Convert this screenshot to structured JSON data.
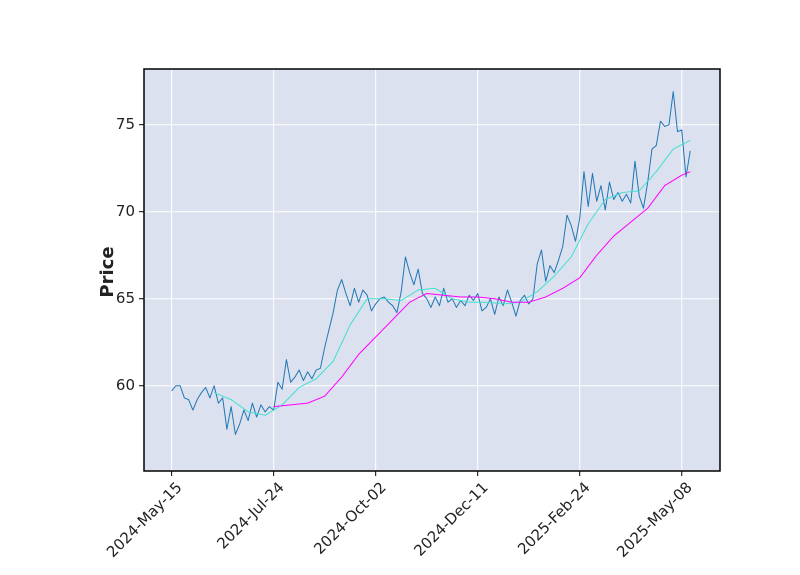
{
  "chart_data": {
    "type": "line",
    "ylabel": "Price",
    "xlim": [
      -13,
      258
    ],
    "xticks": [
      {
        "value": 0,
        "label": "2024-May-15"
      },
      {
        "value": 48,
        "label": "2024-Jul-24"
      },
      {
        "value": 96,
        "label": "2024-Oct-02"
      },
      {
        "value": 144,
        "label": "2024-Dec-11"
      },
      {
        "value": 192,
        "label": "2025-Feb-24"
      },
      {
        "value": 240,
        "label": "2025-May-08"
      }
    ],
    "ylim": [
      55.1,
      78.2
    ],
    "yticks": [
      60,
      65,
      70,
      75
    ],
    "grid": true,
    "background": "#dce1ef",
    "series": [
      {
        "color": "#1f77b4",
        "width": 1,
        "x": [
          0,
          2,
          4,
          6,
          8,
          10,
          12,
          14,
          16,
          18,
          20,
          22,
          24,
          26,
          28,
          30,
          32,
          34,
          36,
          38,
          40,
          42,
          44,
          46,
          48,
          50,
          52,
          54,
          56,
          58,
          60,
          62,
          64,
          66,
          68,
          70,
          72,
          74,
          76,
          78,
          80,
          82,
          84,
          86,
          88,
          90,
          92,
          94,
          96,
          98,
          100,
          102,
          104,
          106,
          108,
          110,
          112,
          114,
          116,
          118,
          120,
          122,
          124,
          126,
          128,
          130,
          132,
          134,
          136,
          138,
          140,
          142,
          144,
          146,
          148,
          150,
          152,
          154,
          156,
          158,
          160,
          162,
          164,
          166,
          168,
          170,
          172,
          174,
          176,
          178,
          180,
          182,
          184,
          186,
          188,
          190,
          192,
          194,
          196,
          198,
          200,
          202,
          204,
          206,
          208,
          210,
          212,
          214,
          216,
          218,
          220,
          222,
          224,
          226,
          228,
          230,
          232,
          234,
          236,
          238,
          240,
          242,
          244
        ],
        "values": [
          59.7,
          60.0,
          60.0,
          59.3,
          59.2,
          58.6,
          59.2,
          59.6,
          59.9,
          59.3,
          60.0,
          59.0,
          59.3,
          57.5,
          58.8,
          57.2,
          57.8,
          58.6,
          58.0,
          59.0,
          58.2,
          58.9,
          58.5,
          58.8,
          58.6,
          60.2,
          59.8,
          61.5,
          60.2,
          60.5,
          60.9,
          60.3,
          60.8,
          60.4,
          60.9,
          61.0,
          62.2,
          63.2,
          64.2,
          65.5,
          66.1,
          65.3,
          64.6,
          65.6,
          64.8,
          65.5,
          65.2,
          64.3,
          64.7,
          65.0,
          65.1,
          64.8,
          64.6,
          64.2,
          65.4,
          67.4,
          66.5,
          65.8,
          66.7,
          65.3,
          65.0,
          64.5,
          65.1,
          64.6,
          65.6,
          64.8,
          65.0,
          64.5,
          64.9,
          64.6,
          65.2,
          64.9,
          65.3,
          64.3,
          64.5,
          65.0,
          64.1,
          65.1,
          64.6,
          65.5,
          64.8,
          64.0,
          64.9,
          65.2,
          64.7,
          65.0,
          67.0,
          67.8,
          66.0,
          66.9,
          66.5,
          67.2,
          68.0,
          69.8,
          69.2,
          68.3,
          69.6,
          72.3,
          70.3,
          72.2,
          70.6,
          71.5,
          70.1,
          71.7,
          70.7,
          71.1,
          70.6,
          71.0,
          70.5,
          72.9,
          70.9,
          70.2,
          71.7,
          73.6,
          73.8,
          75.2,
          74.9,
          75.0,
          76.9,
          74.6,
          74.7,
          72.0,
          73.5
        ]
      },
      {
        "color": "#40e0d0",
        "width": 1,
        "x": [
          20,
          28,
          36,
          44,
          52,
          60,
          68,
          76,
          84,
          92,
          100,
          108,
          116,
          124,
          132,
          140,
          148,
          156,
          164,
          172,
          180,
          188,
          196,
          204,
          212,
          220,
          228,
          236,
          244
        ],
        "values": [
          59.6,
          59.2,
          58.5,
          58.3,
          58.9,
          59.9,
          60.4,
          61.4,
          63.5,
          65.0,
          65.0,
          64.9,
          65.5,
          65.6,
          65.0,
          64.8,
          64.8,
          64.7,
          64.8,
          65.4,
          66.3,
          67.4,
          69.3,
          70.7,
          71.1,
          71.2,
          72.3,
          73.6,
          74.1
        ]
      },
      {
        "color": "#ff00ff",
        "width": 1,
        "x": [
          48,
          56,
          64,
          72,
          80,
          88,
          96,
          104,
          112,
          120,
          128,
          136,
          144,
          152,
          160,
          168,
          176,
          184,
          192,
          200,
          208,
          216,
          224,
          232,
          240,
          244
        ],
        "values": [
          58.8,
          58.9,
          59.0,
          59.4,
          60.5,
          61.8,
          62.8,
          63.8,
          64.8,
          65.3,
          65.2,
          65.1,
          65.1,
          65.0,
          64.8,
          64.8,
          65.1,
          65.6,
          66.2,
          67.5,
          68.6,
          69.4,
          70.2,
          71.5,
          72.1,
          72.3
        ]
      }
    ]
  }
}
